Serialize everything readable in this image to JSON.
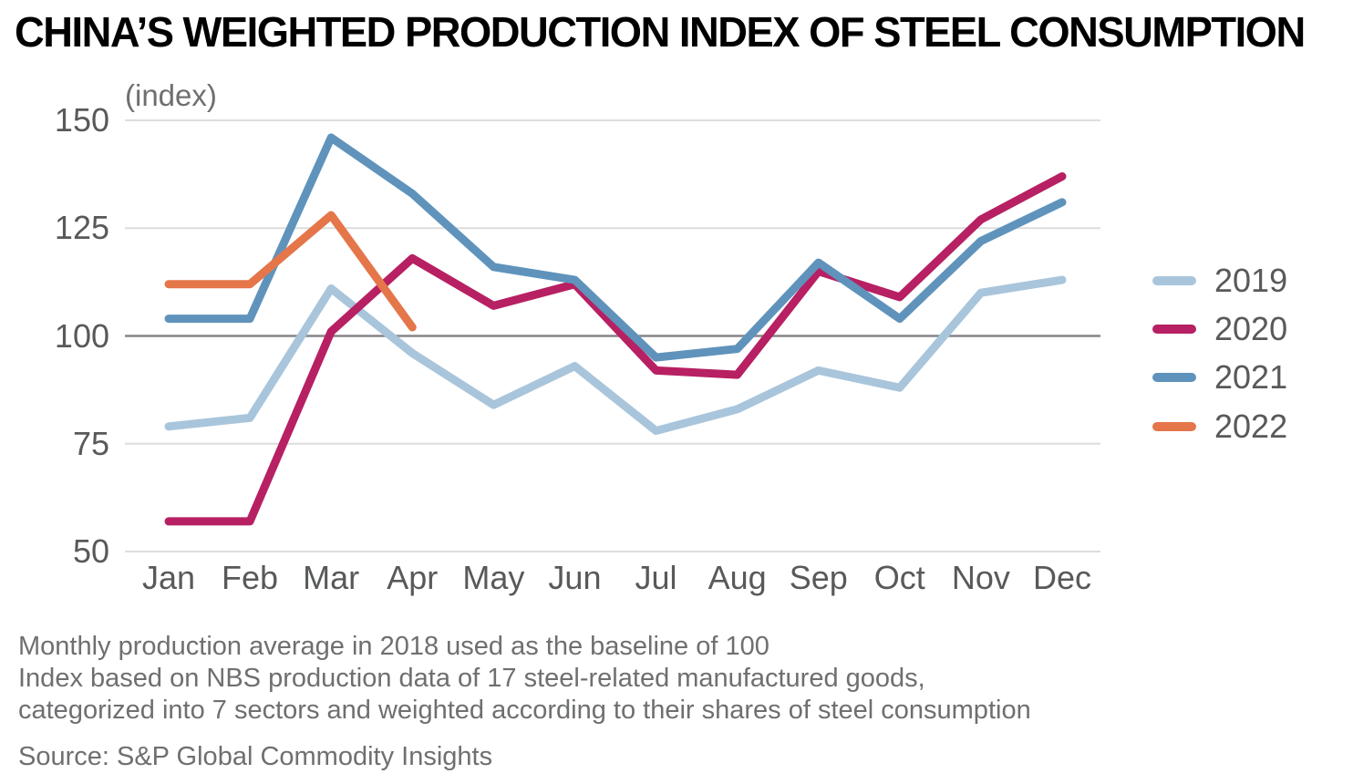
{
  "title": "CHINA’S WEIGHTED PRODUCTION INDEX OF STEEL CONSUMPTION",
  "y_axis_unit_label": "(index)",
  "footnotes": [
    "Monthly production average in 2018 used as the baseline of 100",
    "Index based on NBS production data of 17 steel-related manufactured goods,",
    "categorized into 7 sectors and weighted according to their shares of steel consumption"
  ],
  "source": "Source: S&P Global Commodity Insights",
  "colors": {
    "title": "#000000",
    "axis_text": "#58595b",
    "footnote_text": "#6e6f71",
    "grid_light": "#dcdddd",
    "grid_baseline": "#85868a"
  },
  "chart_data": {
    "type": "line",
    "title": "CHINA’S WEIGHTED PRODUCTION INDEX OF STEEL CONSUMPTION",
    "subtitle": "(index)",
    "categories": [
      "Jan",
      "Feb",
      "Mar",
      "Apr",
      "May",
      "Jun",
      "Jul",
      "Aug",
      "Sep",
      "Oct",
      "Nov",
      "Dec"
    ],
    "ylim": [
      50,
      150
    ],
    "y_ticks": [
      150,
      125,
      100,
      75,
      50
    ],
    "baseline_value": 100,
    "grid": "horizontal",
    "legend_position": "right",
    "note": "Monthly production average in 2018 used as the baseline of 100",
    "series": [
      {
        "name": "2019",
        "color": "#a9c5db",
        "values": [
          79,
          81,
          111,
          96,
          84,
          93,
          78,
          83,
          92,
          88,
          110,
          113
        ]
      },
      {
        "name": "2020",
        "color": "#b72062",
        "values": [
          57,
          57,
          101,
          118,
          107,
          112,
          92,
          91,
          115,
          109,
          127,
          137
        ]
      },
      {
        "name": "2021",
        "color": "#5f93bb",
        "values": [
          104,
          104,
          146,
          133,
          116,
          113,
          95,
          97,
          117,
          104,
          122,
          131
        ]
      },
      {
        "name": "2022",
        "color": "#e4764a",
        "values": [
          112,
          112,
          128,
          102
        ]
      }
    ]
  }
}
